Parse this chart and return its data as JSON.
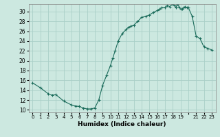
{
  "title": "",
  "xlabel": "Humidex (Indice chaleur)",
  "ylabel": "",
  "bg_color": "#cce8e0",
  "grid_color": "#aacfc8",
  "line_color": "#1a6b5a",
  "marker_color": "#1a6b5a",
  "xlim": [
    -0.5,
    23.5
  ],
  "ylim": [
    9.5,
    31.5
  ],
  "yticks": [
    10,
    12,
    14,
    16,
    18,
    20,
    22,
    24,
    26,
    28,
    30
  ],
  "xtick_labels": [
    "0",
    "1",
    "2",
    "3",
    "4",
    "5",
    "6",
    "7",
    "8",
    "9",
    "10",
    "11",
    "12",
    "13",
    "14",
    "15",
    "16",
    "17",
    "18",
    "19",
    "",
    "21",
    "22",
    "23"
  ],
  "x": [
    0,
    1,
    2,
    2.5,
    3,
    4,
    5,
    5.5,
    6,
    6.5,
    7,
    7.5,
    8,
    8.5,
    9,
    9.5,
    10,
    10.3,
    10.6,
    11,
    11.5,
    12,
    12.3,
    12.6,
    13,
    13.5,
    14,
    14.5,
    15,
    15.5,
    16,
    16.3,
    16.6,
    17,
    17.3,
    17.6,
    18,
    18.2,
    18.4,
    18.6,
    18.8,
    19,
    19.2,
    19.4,
    19.6,
    19.8,
    20,
    20.5,
    21,
    21.5,
    22,
    22.5,
    23
  ],
  "y": [
    15.5,
    14.5,
    13.3,
    13.0,
    13.1,
    11.8,
    11.0,
    10.8,
    10.7,
    10.4,
    10.2,
    10.2,
    10.4,
    12.0,
    15.0,
    17.0,
    19.0,
    20.5,
    22.0,
    24.0,
    25.5,
    26.3,
    26.8,
    27.0,
    27.2,
    28.0,
    28.8,
    29.0,
    29.3,
    29.8,
    30.2,
    30.5,
    30.8,
    30.8,
    31.2,
    31.0,
    31.5,
    31.2,
    30.8,
    31.5,
    31.0,
    30.5,
    30.5,
    30.8,
    31.0,
    30.8,
    30.8,
    29.0,
    25.0,
    24.5,
    22.8,
    22.5,
    22.2
  ]
}
